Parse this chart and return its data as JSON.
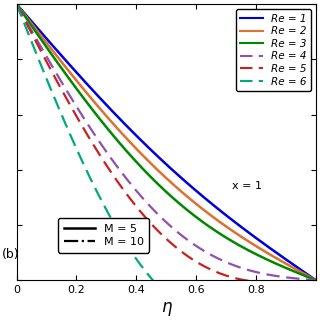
{
  "xlabel": "η",
  "label_b": "(b)",
  "annotation_x": "x = 1",
  "xlim": [
    0,
    1.0
  ],
  "ylim": [
    0,
    1.0
  ],
  "Re_labels": [
    "Re = 1",
    "Re = 2",
    "Re = 3",
    "Re = 4",
    "Re = 5",
    "Re = 6"
  ],
  "line_colors": [
    "#0000dd",
    "#e07030",
    "#008800",
    "#9050b0",
    "#cc2020",
    "#00aa80"
  ],
  "line_styles": [
    "-",
    "-",
    "-",
    "--",
    "--",
    "--"
  ],
  "M_labels": [
    "M = 5",
    "M = 10"
  ],
  "xticks": [
    0.2,
    0.4,
    0.6,
    0.8
  ],
  "yticks": [],
  "background_color": "#ffffff",
  "curve_amplitude": [
    0.08,
    0.1,
    0.12,
    0.2,
    0.22,
    0.35
  ],
  "curve_offset": [
    0.0,
    -0.03,
    -0.06,
    -0.09,
    -0.13,
    -0.2
  ]
}
